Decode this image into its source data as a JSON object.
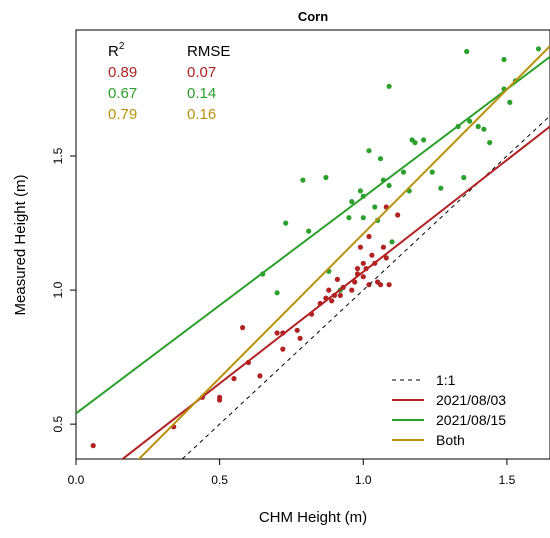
{
  "chart_data": {
    "type": "scatter",
    "title": "Corn",
    "xlabel": "CHM Height (m)",
    "ylabel": "Measured Height (m)",
    "xlim": [
      0.0,
      1.65
    ],
    "ylim": [
      0.37,
      1.97
    ],
    "x_ticks": [
      "0.0",
      "0.5",
      "1.0",
      "1.5"
    ],
    "y_ticks": [
      "0.5",
      "1.0",
      "1.5"
    ],
    "x_tick_values": [
      0.0,
      0.5,
      1.0,
      1.5
    ],
    "y_tick_values": [
      0.5,
      1.0,
      1.5
    ],
    "grid": false,
    "legend_position": "bottom-right",
    "colors": {
      "red": "#b22222",
      "green": "#2ca02c",
      "gold": "#b8920c",
      "black": "#000000"
    },
    "stats": {
      "r2_header_base": "R",
      "r2_header_sup": "2",
      "rmse_header": "RMSE",
      "rows": [
        {
          "r2": "0.89",
          "rmse": "0.07",
          "color": "#b22222"
        },
        {
          "r2": "0.67",
          "rmse": "0.14",
          "color": "#2ca02c"
        },
        {
          "r2": "0.79",
          "rmse": "0.16",
          "color": "#b8920c"
        }
      ]
    },
    "legend": [
      {
        "label": "1:1",
        "color": "#000000",
        "dash": "4,4"
      },
      {
        "label": "2021/08/03",
        "color": "#b22222",
        "dash": ""
      },
      {
        "label": "2021/08/15",
        "color": "#2ca02c",
        "dash": ""
      },
      {
        "label": "Both",
        "color": "#b8920c",
        "dash": ""
      }
    ],
    "lines": [
      {
        "name": "1:1",
        "color": "#000000",
        "dash": "4,4",
        "points": [
          [
            0.37,
            0.37
          ],
          [
            1.65,
            1.65
          ]
        ]
      },
      {
        "name": "2021/08/03",
        "color": "#b22222",
        "dash": "",
        "points": [
          [
            0.15,
            0.36
          ],
          [
            1.65,
            1.61
          ]
        ]
      },
      {
        "name": "2021/08/15",
        "color": "#2ca02c",
        "dash": "",
        "points": [
          [
            0.0,
            0.54
          ],
          [
            1.65,
            1.87
          ]
        ]
      },
      {
        "name": "Both",
        "color": "#b8920c",
        "dash": "",
        "points": [
          [
            0.21,
            0.36
          ],
          [
            1.65,
            1.91
          ]
        ]
      }
    ],
    "series": [
      {
        "name": "2021/08/03",
        "color": "#b22222",
        "points": [
          [
            0.06,
            0.42
          ],
          [
            0.34,
            0.49
          ],
          [
            0.44,
            0.6
          ],
          [
            0.5,
            0.6
          ],
          [
            0.5,
            0.59
          ],
          [
            0.55,
            0.67
          ],
          [
            0.58,
            0.86
          ],
          [
            0.6,
            0.73
          ],
          [
            0.64,
            0.68
          ],
          [
            0.7,
            0.84
          ],
          [
            0.72,
            0.84
          ],
          [
            0.72,
            0.78
          ],
          [
            0.77,
            0.85
          ],
          [
            0.78,
            0.82
          ],
          [
            0.82,
            0.91
          ],
          [
            0.85,
            0.95
          ],
          [
            0.87,
            0.97
          ],
          [
            0.88,
            1.0
          ],
          [
            0.89,
            0.96
          ],
          [
            0.9,
            0.98
          ],
          [
            0.91,
            1.04
          ],
          [
            0.92,
            0.98
          ],
          [
            0.93,
            1.01
          ],
          [
            0.96,
            1.0
          ],
          [
            0.97,
            1.03
          ],
          [
            0.98,
            1.06
          ],
          [
            0.98,
            1.08
          ],
          [
            0.99,
            1.16
          ],
          [
            1.0,
            1.1
          ],
          [
            1.0,
            1.05
          ],
          [
            1.01,
            1.08
          ],
          [
            1.02,
            1.2
          ],
          [
            1.02,
            1.02
          ],
          [
            1.03,
            1.13
          ],
          [
            1.04,
            1.1
          ],
          [
            1.05,
            1.03
          ],
          [
            1.06,
            1.02
          ],
          [
            1.07,
            1.16
          ],
          [
            1.08,
            1.12
          ],
          [
            1.08,
            1.31
          ],
          [
            1.09,
            1.02
          ],
          [
            1.12,
            1.28
          ]
        ]
      },
      {
        "name": "2021/08/15",
        "color": "#2ca02c",
        "points": [
          [
            0.65,
            1.06
          ],
          [
            0.7,
            0.99
          ],
          [
            0.73,
            1.25
          ],
          [
            0.79,
            1.41
          ],
          [
            0.81,
            1.22
          ],
          [
            0.87,
            1.42
          ],
          [
            0.88,
            1.07
          ],
          [
            0.92,
            1.0
          ],
          [
            0.95,
            1.27
          ],
          [
            0.96,
            1.33
          ],
          [
            0.99,
            1.37
          ],
          [
            1.0,
            1.35
          ],
          [
            1.0,
            1.27
          ],
          [
            1.02,
            1.52
          ],
          [
            1.04,
            1.31
          ],
          [
            1.05,
            1.26
          ],
          [
            1.06,
            1.49
          ],
          [
            1.07,
            1.41
          ],
          [
            1.09,
            1.39
          ],
          [
            1.09,
            1.76
          ],
          [
            1.1,
            1.18
          ],
          [
            1.14,
            1.44
          ],
          [
            1.16,
            1.37
          ],
          [
            1.17,
            1.56
          ],
          [
            1.18,
            1.55
          ],
          [
            1.21,
            1.56
          ],
          [
            1.24,
            1.44
          ],
          [
            1.27,
            1.38
          ],
          [
            1.33,
            1.61
          ],
          [
            1.35,
            1.42
          ],
          [
            1.36,
            1.89
          ],
          [
            1.37,
            1.63
          ],
          [
            1.4,
            1.61
          ],
          [
            1.42,
            1.6
          ],
          [
            1.44,
            1.55
          ],
          [
            1.49,
            1.86
          ],
          [
            1.49,
            1.75
          ],
          [
            1.51,
            1.7
          ],
          [
            1.53,
            1.78
          ],
          [
            1.61,
            1.9
          ]
        ]
      }
    ]
  }
}
